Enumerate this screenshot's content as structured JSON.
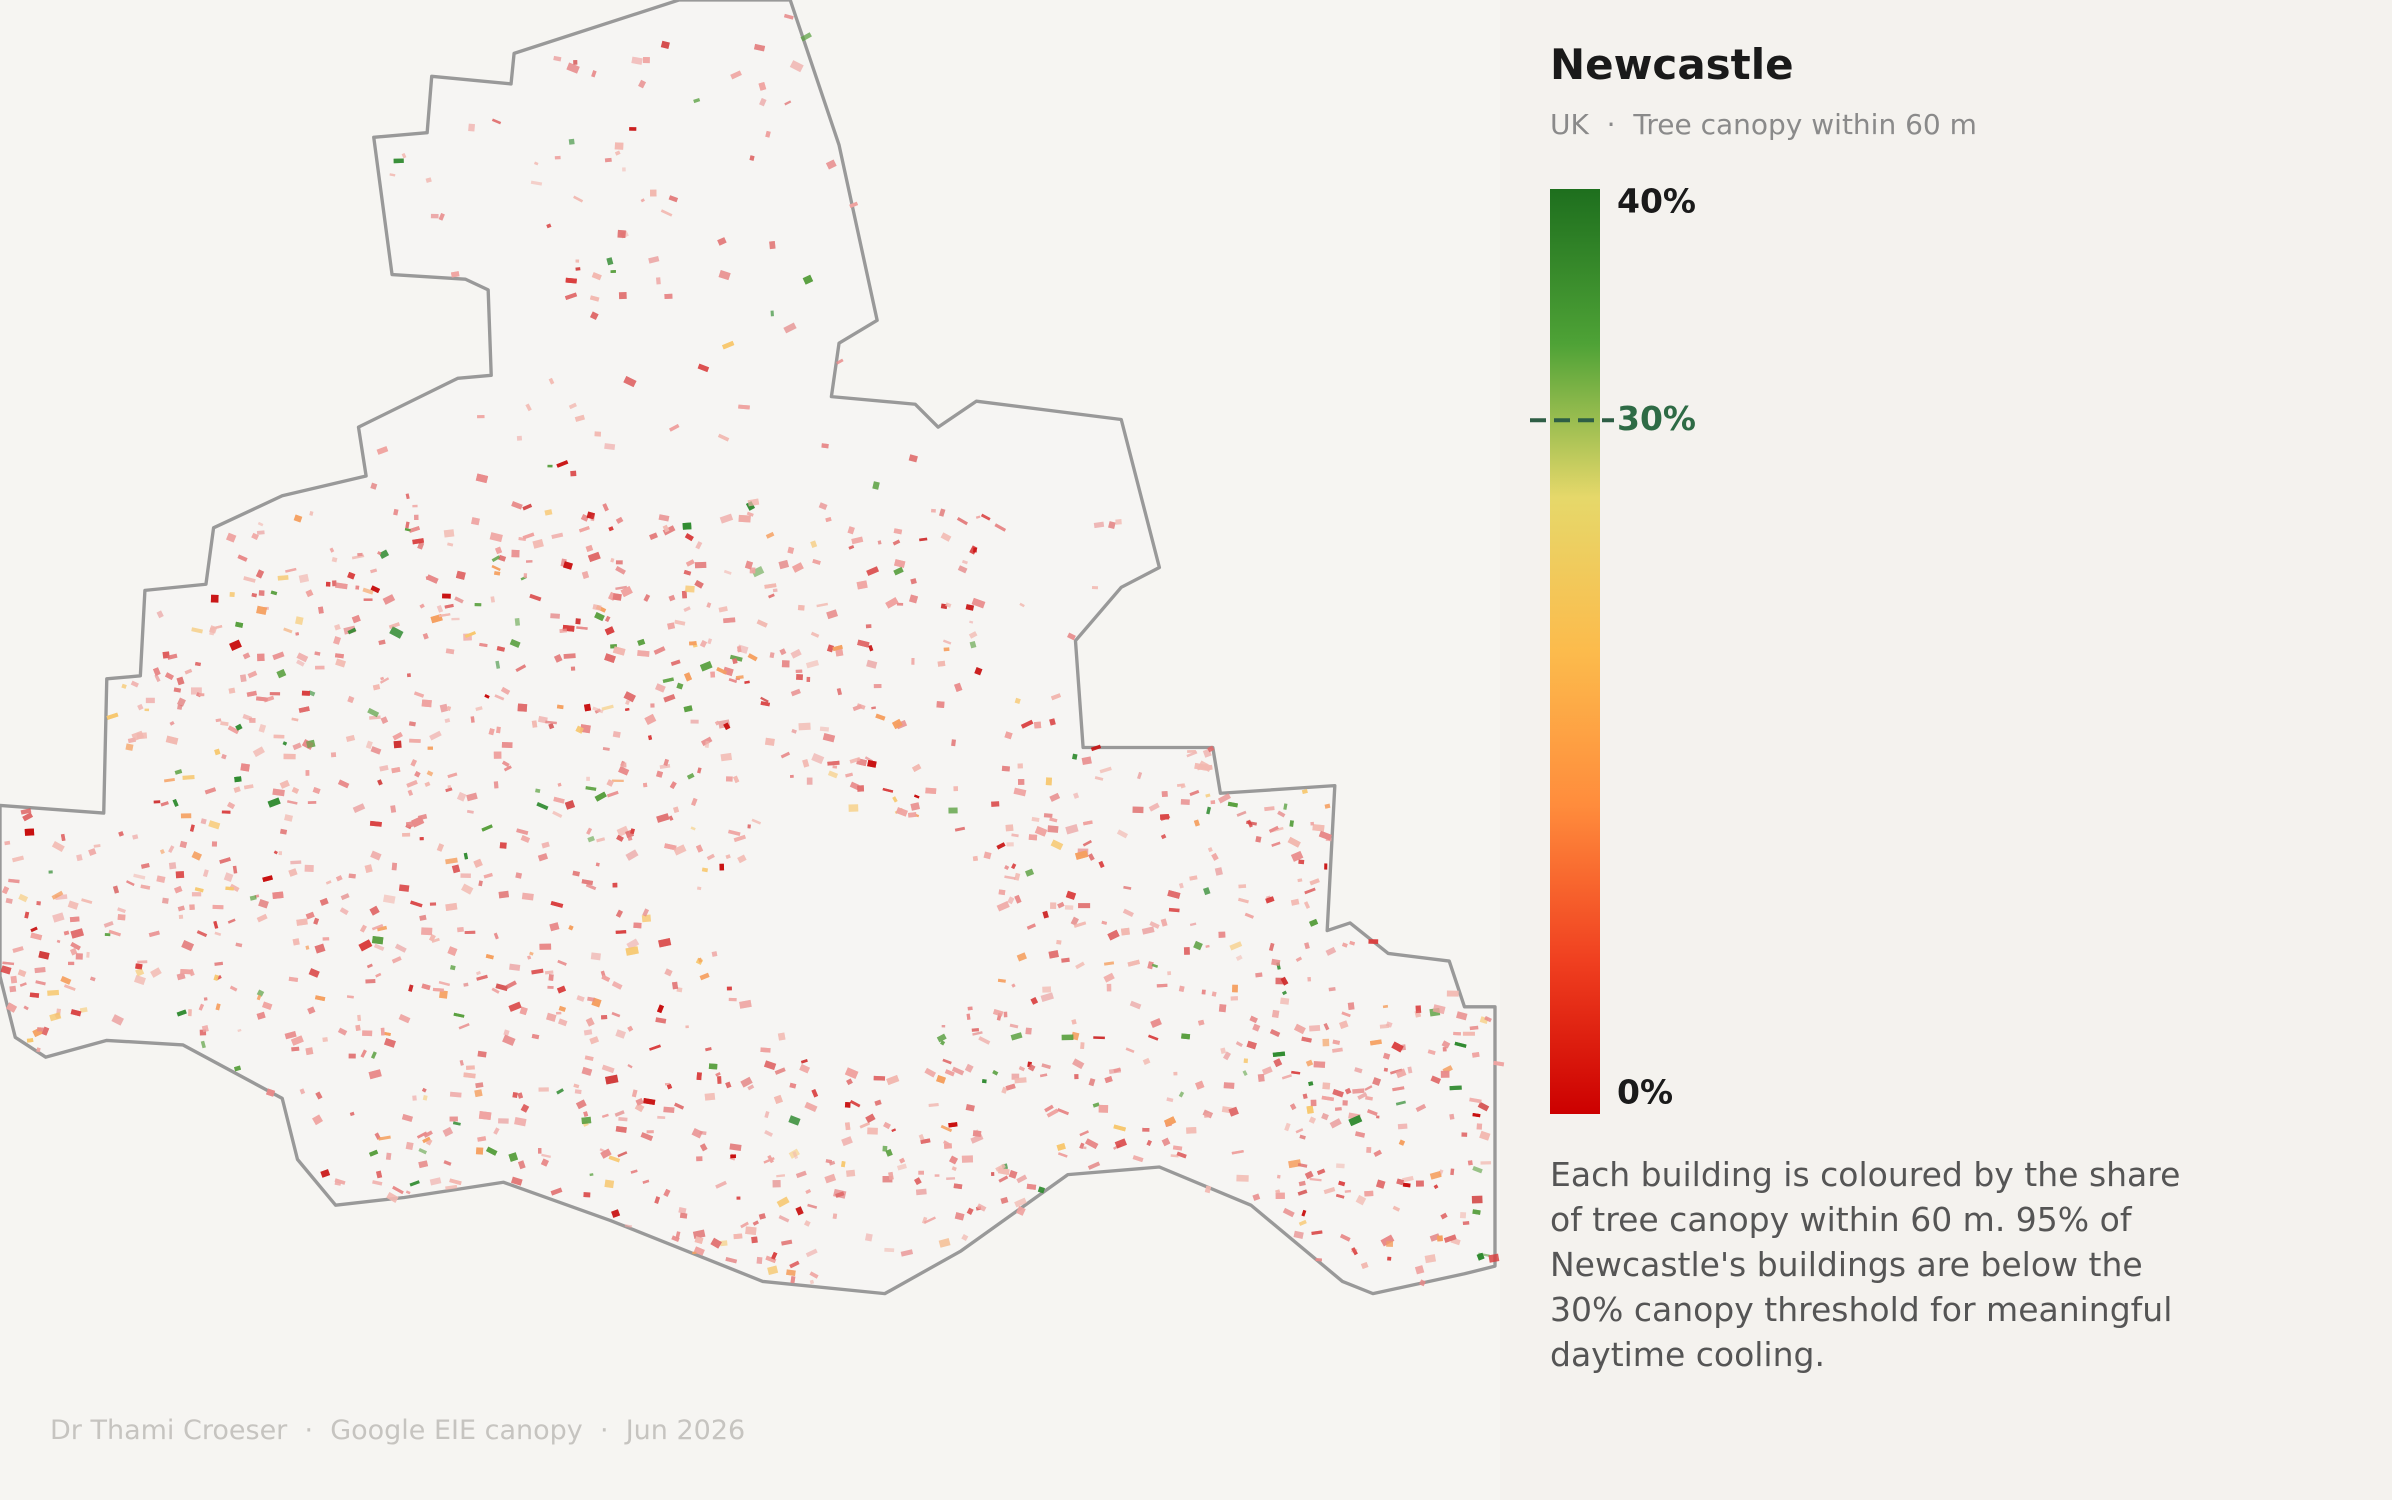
{
  "header": {
    "title": "Newcastle",
    "subtitle": "UK  ·  Tree canopy within 60 m"
  },
  "legend": {
    "range": [
      0,
      40
    ],
    "ticks": [
      {
        "value": 0,
        "label": "0%"
      },
      {
        "value": 30,
        "label": "30%"
      },
      {
        "value": 40,
        "label": "40%"
      }
    ],
    "colormap": [
      "#cc0000",
      "#f04020",
      "#ff8c3c",
      "#fcbb4c",
      "#e6d86a",
      "#4ea236",
      "#1e6f1e"
    ]
  },
  "description": "Each building is coloured by the share of tree canopy within 60 m. 95% of Newcastle's buildings are below the 30% canopy threshold for meaningful daytime cooling.",
  "footer": "Dr Thami Croeser  ·  Google EIE canopy  ·  Jun 2026"
}
